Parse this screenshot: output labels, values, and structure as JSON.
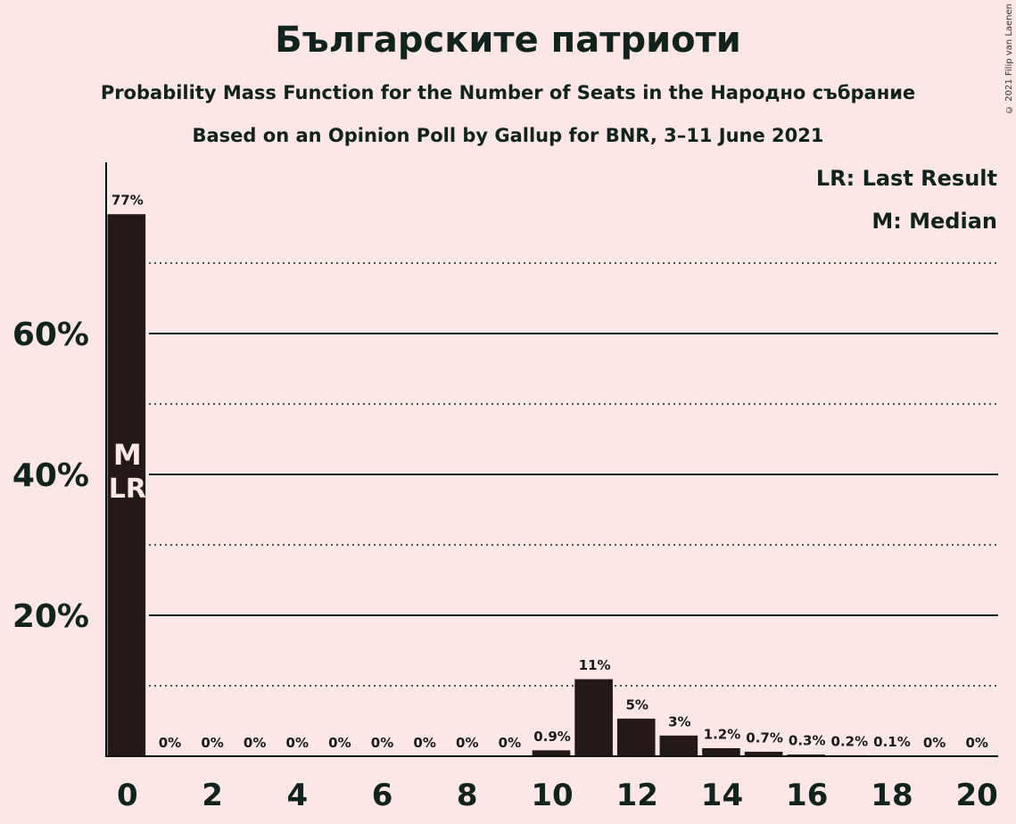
{
  "title": "Българските патриоти",
  "subtitle": "Probability Mass Function for the Number of Seats in the Народно събрание",
  "subtitle2": "Based on an Opinion Poll by Gallup for BNR, 3–11 June 2021",
  "copyright": "© 2021 Filip van Laenen",
  "legend": {
    "last_result": "LR: Last Result",
    "median": "M: Median"
  },
  "colors": {
    "background": "#fde6e6",
    "bar": "#231a18",
    "text": "#10231c",
    "marker_text": "#fde6e6"
  },
  "chart_data": {
    "type": "bar",
    "title": "Българските патриоти",
    "xlabel": "",
    "ylabel": "",
    "x": [
      0,
      1,
      2,
      3,
      4,
      5,
      6,
      7,
      8,
      9,
      10,
      11,
      12,
      13,
      14,
      15,
      16,
      17,
      18,
      19,
      20
    ],
    "values": [
      77,
      0,
      0,
      0,
      0,
      0,
      0,
      0,
      0,
      0,
      0.9,
      11,
      5.4,
      3.0,
      1.2,
      0.7,
      0.3,
      0.2,
      0.1,
      0,
      0
    ],
    "labels": [
      "77%",
      "0%",
      "0%",
      "0%",
      "0%",
      "0%",
      "0%",
      "0%",
      "0%",
      "0%",
      "0.9%",
      "11%",
      "5%",
      "3%",
      "1.2%",
      "0.7%",
      "0.3%",
      "0.2%",
      "0.1%",
      "0%",
      "0%"
    ],
    "xticks": [
      0,
      2,
      4,
      6,
      8,
      10,
      12,
      14,
      16,
      18,
      20
    ],
    "yticks_major": [
      20,
      40,
      60
    ],
    "ytick_labels": [
      "20%",
      "40%",
      "60%"
    ],
    "yticks_minor": [
      10,
      30,
      50,
      70
    ],
    "ylim": [
      0,
      84
    ],
    "median": 0,
    "last_result": 0,
    "marker_labels": {
      "median": "M",
      "last_result": "LR"
    },
    "grid": true,
    "legend_position": "top-right"
  }
}
